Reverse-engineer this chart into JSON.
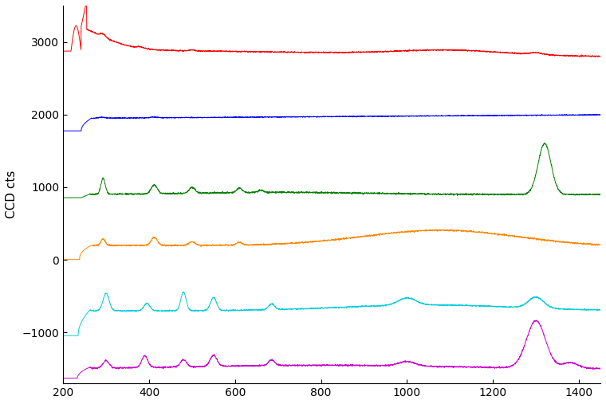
{
  "title": "",
  "xlabel": "",
  "ylabel": "CCD cts",
  "x_min": 200,
  "x_max": 1450,
  "y_min": -1700,
  "y_max": 3500,
  "x_ticks": [
    200,
    400,
    600,
    800,
    1000,
    1200,
    1400
  ],
  "y_ticks": [
    -1000,
    0,
    1000,
    2000,
    3000
  ],
  "background_color": "#ffffff",
  "colors": {
    "red": "#ff0000",
    "blue": "#0000ff",
    "green": "#008000",
    "orange": "#ff8800",
    "cyan": "#00ccdd",
    "magenta": "#cc00cc"
  },
  "offsets": {
    "red": 2900,
    "blue": 1950,
    "green": 900,
    "orange": 200,
    "cyan": -700,
    "magenta": -1500
  }
}
